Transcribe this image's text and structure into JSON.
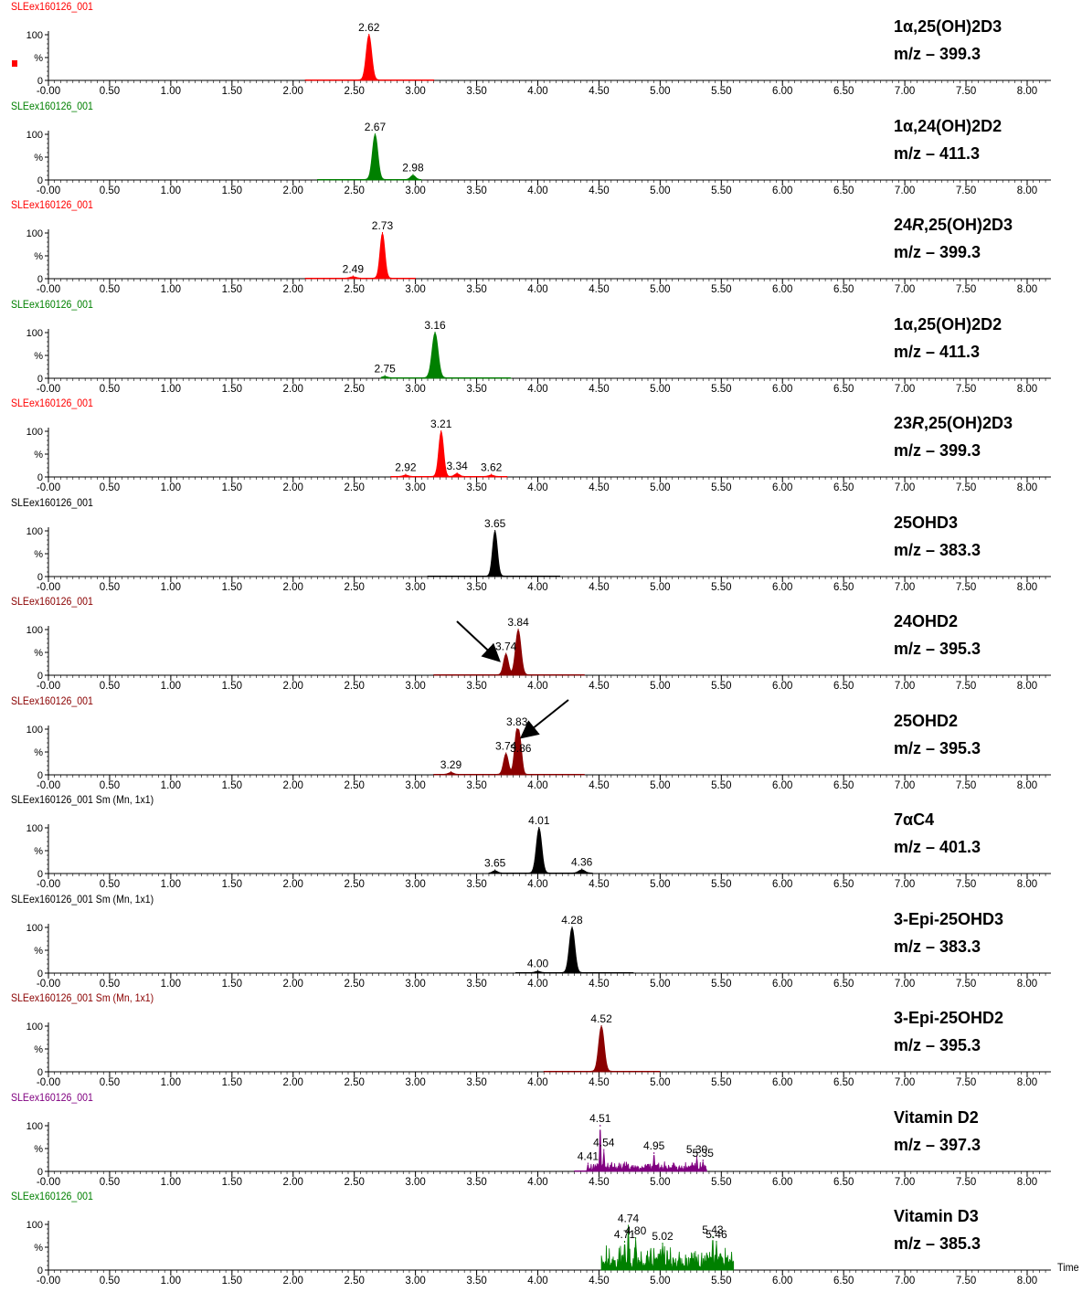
{
  "chart_data": {
    "type": "line",
    "subtype": "stacked chromatograms",
    "x_axis_label": "Time",
    "x_range": [
      -0.2,
      8.2
    ],
    "x_ticks": [
      "-0.00",
      "0.50",
      "1.00",
      "1.50",
      "2.00",
      "2.50",
      "3.00",
      "3.50",
      "4.00",
      "4.50",
      "5.00",
      "5.50",
      "6.00",
      "6.50",
      "7.00",
      "7.50",
      "8.00"
    ],
    "y_ticks": [
      "100",
      "%",
      "0"
    ],
    "y_range": [
      0,
      100
    ],
    "panels": [
      {
        "run_label": "SLEex160126_001",
        "color": "#ff0000",
        "analyte_parts": [
          {
            "t": "1α,25(OH)2D3",
            "i": false
          }
        ],
        "mz": "m/z – 399.3",
        "baseline": [
          2.1,
          3.15
        ],
        "peaks": [
          {
            "rt": 2.62,
            "height": 98,
            "width": 0.045,
            "label": "2.62"
          }
        ]
      },
      {
        "run_label": "SLEex160126_001",
        "color": "#008000",
        "analyte_parts": [
          {
            "t": "1α,24(OH)2D2",
            "i": false
          }
        ],
        "mz": "m/z – 411.3",
        "baseline": [
          2.2,
          3.05
        ],
        "peaks": [
          {
            "rt": 2.67,
            "height": 98,
            "width": 0.045,
            "label": "2.67"
          },
          {
            "rt": 2.98,
            "height": 9,
            "width": 0.04,
            "label": "2.98"
          }
        ]
      },
      {
        "run_label": "SLEex160126_001",
        "color": "#ff0000",
        "analyte_parts": [
          {
            "t": "24",
            "i": false
          },
          {
            "t": "R",
            "i": true
          },
          {
            "t": ",25(OH)2D3",
            "i": false
          }
        ],
        "mz": "m/z – 399.3",
        "baseline": [
          2.1,
          3.0
        ],
        "peaks": [
          {
            "rt": 2.73,
            "height": 98,
            "width": 0.04,
            "label": "2.73"
          },
          {
            "rt": 2.49,
            "height": 3,
            "width": 0.05,
            "label": "2.49"
          }
        ]
      },
      {
        "run_label": "SLEex160126_001",
        "color": "#008000",
        "analyte_parts": [
          {
            "t": "1α,25(OH)2D2",
            "i": false
          }
        ],
        "mz": "m/z – 411.3",
        "baseline": [
          2.72,
          3.78
        ],
        "peaks": [
          {
            "rt": 3.16,
            "height": 98,
            "width": 0.05,
            "label": "3.16"
          },
          {
            "rt": 2.75,
            "height": 3,
            "width": 0.04,
            "label": "2.75"
          }
        ]
      },
      {
        "run_label": "SLEex160126_001",
        "color": "#ff0000",
        "analyte_parts": [
          {
            "t": "23",
            "i": false
          },
          {
            "t": "R",
            "i": true
          },
          {
            "t": ",25(OH)2D3",
            "i": false
          }
        ],
        "mz": "m/z – 399.3",
        "baseline": [
          2.8,
          3.75
        ],
        "peaks": [
          {
            "rt": 3.21,
            "height": 98,
            "width": 0.04,
            "label": "3.21"
          },
          {
            "rt": 2.92,
            "height": 3,
            "width": 0.04,
            "label": "2.92"
          },
          {
            "rt": 3.34,
            "height": 6,
            "width": 0.04,
            "label": "3.34"
          },
          {
            "rt": 3.62,
            "height": 3,
            "width": 0.04,
            "label": "3.62"
          }
        ]
      },
      {
        "run_label": "SLEex160126_001",
        "color": "#000000",
        "analyte_parts": [
          {
            "t": "25OHD3",
            "i": false
          }
        ],
        "mz": "m/z – 383.3",
        "baseline": [
          3.1,
          4.18
        ],
        "peaks": [
          {
            "rt": 3.65,
            "height": 98,
            "width": 0.04,
            "label": "3.65"
          }
        ]
      },
      {
        "run_label": "SLEex160126_001",
        "color": "#8b0000",
        "analyte_parts": [
          {
            "t": "24OHD2",
            "i": false
          }
        ],
        "mz": "m/z – 395.3",
        "baseline": [
          3.15,
          4.38
        ],
        "peaks": [
          {
            "rt": 3.84,
            "height": 98,
            "width": 0.045,
            "label": "3.84"
          },
          {
            "rt": 3.74,
            "height": 45,
            "width": 0.04,
            "label": "3.74"
          }
        ]
      },
      {
        "run_label": "SLEex160126_001",
        "color": "#8b0000",
        "analyte_parts": [
          {
            "t": "25OHD2",
            "i": false
          }
        ],
        "mz": "m/z – 395.3",
        "baseline": [
          3.15,
          4.38
        ],
        "peaks": [
          {
            "rt": 3.83,
            "height": 98,
            "width": 0.04,
            "label": "3.83"
          },
          {
            "rt": 3.86,
            "height": 40,
            "width": 0.03,
            "label": "3.86"
          },
          {
            "rt": 3.74,
            "height": 45,
            "width": 0.04,
            "label": "3.74"
          },
          {
            "rt": 3.29,
            "height": 4,
            "width": 0.04,
            "label": "3.29"
          }
        ]
      },
      {
        "run_label": "SLEex160126_001 Sm (Mn, 1x1)",
        "color": "#000000",
        "analyte_parts": [
          {
            "t": "7αC4",
            "i": false
          }
        ],
        "mz": "m/z – 401.3",
        "baseline": [
          3.6,
          4.45
        ],
        "peaks": [
          {
            "rt": 4.01,
            "height": 98,
            "width": 0.045,
            "label": "4.01"
          },
          {
            "rt": 3.65,
            "height": 5,
            "width": 0.04,
            "label": "3.65"
          },
          {
            "rt": 4.36,
            "height": 7,
            "width": 0.05,
            "label": "4.36"
          }
        ]
      },
      {
        "run_label": "SLEex160126_001 Sm (Mn, 1x1)",
        "color": "#000000",
        "analyte_parts": [
          {
            "t": "3-Epi-25OHD3",
            "i": false
          }
        ],
        "mz": "m/z – 383.3",
        "baseline": [
          3.82,
          4.78
        ],
        "peaks": [
          {
            "rt": 4.28,
            "height": 98,
            "width": 0.045,
            "label": "4.28"
          },
          {
            "rt": 4.0,
            "height": 3,
            "width": 0.04,
            "label": "4.00"
          }
        ]
      },
      {
        "run_label": "SLEex160126_001 Sm (Mn, 1x1)",
        "color": "#8b0000",
        "analyte_parts": [
          {
            "t": "3-Epi-25OHD2",
            "i": false
          }
        ],
        "mz": "m/z – 395.3",
        "baseline": [
          4.05,
          5.0
        ],
        "peaks": [
          {
            "rt": 4.52,
            "height": 98,
            "width": 0.045,
            "label": "4.52"
          }
        ]
      },
      {
        "run_label": "SLEex160126_001",
        "color": "#800080",
        "analyte_parts": [
          {
            "t": "Vitamin D2",
            "i": false
          }
        ],
        "mz": "m/z – 397.3",
        "baseline": [
          4.3,
          5.38
        ],
        "noise": {
          "from": 4.42,
          "to": 5.38,
          "level": 22
        },
        "peaks": [
          {
            "rt": 4.51,
            "height": 98,
            "width": 0.01,
            "label": "4.51"
          },
          {
            "rt": 4.41,
            "height": 15,
            "width": 0.01,
            "label": "4.41"
          },
          {
            "rt": 4.54,
            "height": 45,
            "width": 0.01,
            "label": "4.54"
          },
          {
            "rt": 4.95,
            "height": 38,
            "width": 0.01,
            "label": "4.95"
          },
          {
            "rt": 5.3,
            "height": 30,
            "width": 0.01,
            "label": "5.30"
          },
          {
            "rt": 5.35,
            "height": 22,
            "width": 0.01,
            "label": "5.35"
          }
        ]
      },
      {
        "run_label": "SLEex160126_001",
        "color": "#008000",
        "analyte_parts": [
          {
            "t": "Vitamin D3",
            "i": false
          }
        ],
        "mz": "m/z – 385.3",
        "baseline": [
          4.52,
          5.6
        ],
        "noise": {
          "from": 4.52,
          "to": 5.6,
          "level": 55
        },
        "peaks": [
          {
            "rt": 4.74,
            "height": 95,
            "width": 0.01,
            "label": "4.74"
          },
          {
            "rt": 4.71,
            "height": 60,
            "width": 0.01,
            "label": "4.71"
          },
          {
            "rt": 4.8,
            "height": 68,
            "width": 0.01,
            "label": "4.80"
          },
          {
            "rt": 5.02,
            "height": 56,
            "width": 0.01,
            "label": "5.02"
          },
          {
            "rt": 5.43,
            "height": 70,
            "width": 0.01,
            "label": "5.43"
          },
          {
            "rt": 5.46,
            "height": 60,
            "width": 0.01,
            "label": "5.46"
          }
        ]
      }
    ]
  }
}
